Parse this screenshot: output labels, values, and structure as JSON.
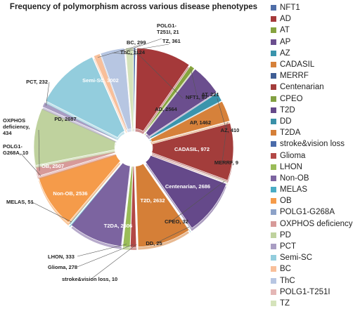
{
  "chart_data": {
    "type": "pie",
    "title": "Frequency of polymorphism across various disease phenotypes",
    "legend_position": "right",
    "slices": [
      {
        "name": "NFT1",
        "value": 87,
        "label": "NFT1, 87",
        "color": "#4F6EA8"
      },
      {
        "name": "AD",
        "value": 2564,
        "label": "AD, 2564",
        "color": "#A5393A"
      },
      {
        "name": "AT",
        "value": 221,
        "label": "AT, 221",
        "color": "#86A33E"
      },
      {
        "name": "AP",
        "value": 1462,
        "label": "AP, 1462",
        "color": "#6B4E8E"
      },
      {
        "name": "AZ",
        "value": 410,
        "label": "AZ, 410",
        "color": "#3A94AC"
      },
      {
        "name": "CADASIL",
        "value": 972,
        "label": "CADASIL, 972",
        "color": "#D6813A"
      },
      {
        "name": "MERRF",
        "value": 9,
        "label": "MERRF, 9",
        "color": "#3F5E95"
      },
      {
        "name": "Centenarian",
        "value": 2686,
        "label": "Centenarian, 2686",
        "color": "#A33D3B"
      },
      {
        "name": "CPEO",
        "value": 32,
        "label": "CPEO, 32",
        "color": "#82A042"
      },
      {
        "name": "T2D",
        "value": 2632,
        "label": "T2D, 2632",
        "color": "#65498A"
      },
      {
        "name": "DD",
        "value": 25,
        "label": "DD, 25",
        "color": "#3A90A8"
      },
      {
        "name": "T2DA",
        "value": 2506,
        "label": "T2DA, 2506",
        "color": "#D57F37"
      },
      {
        "name": "stroke&vision loss",
        "value": 10,
        "label": "stroke&vision loss, 10",
        "color": "#4A6BAA"
      },
      {
        "name": "Glioma",
        "value": 278,
        "label": "Glioma, 278",
        "color": "#B24846"
      },
      {
        "name": "LHON",
        "value": 333,
        "label": "LHON, 333",
        "color": "#9ABC58"
      },
      {
        "name": "Non-OB",
        "value": 2536,
        "label": "Non-OB, 2536",
        "color": "#7C64A0"
      },
      {
        "name": "MELAS",
        "value": 51,
        "label": "MELAS, 51",
        "color": "#4AACC5"
      },
      {
        "name": "OB",
        "value": 2507,
        "label": "OB, 2507",
        "color": "#F59B4A"
      },
      {
        "name": "POLG1-G268A",
        "value": 10,
        "label": "POLG1-G268A, 10",
        "color": "#8DA2C8"
      },
      {
        "name": "OXPHOS deficiency",
        "value": 434,
        "label": "OXPHOS deficiency, 434",
        "color": "#D79A99"
      },
      {
        "name": "PD",
        "value": 2687,
        "label": "PD, 2687",
        "color": "#BFD29E"
      },
      {
        "name": "PCT",
        "value": 232,
        "label": "PCT, 232",
        "color": "#A99DC3"
      },
      {
        "name": "Semi-SC",
        "value": 3002,
        "label": "Semi-SC, 3002",
        "color": "#93CDDD"
      },
      {
        "name": "BC",
        "value": 299,
        "label": "BC, 299",
        "color": "#F8BF9A"
      },
      {
        "name": "ThC",
        "value": 1124,
        "label": "ThC, 1124",
        "color": "#B7C6E2"
      },
      {
        "name": "POLG1-T251I",
        "value": 21,
        "label": "POLG1-T251I, 21",
        "color": "#E4B7B6"
      },
      {
        "name": "TZ",
        "value": 361,
        "label": "TZ, 361",
        "color": "#D5E3BB"
      }
    ]
  }
}
